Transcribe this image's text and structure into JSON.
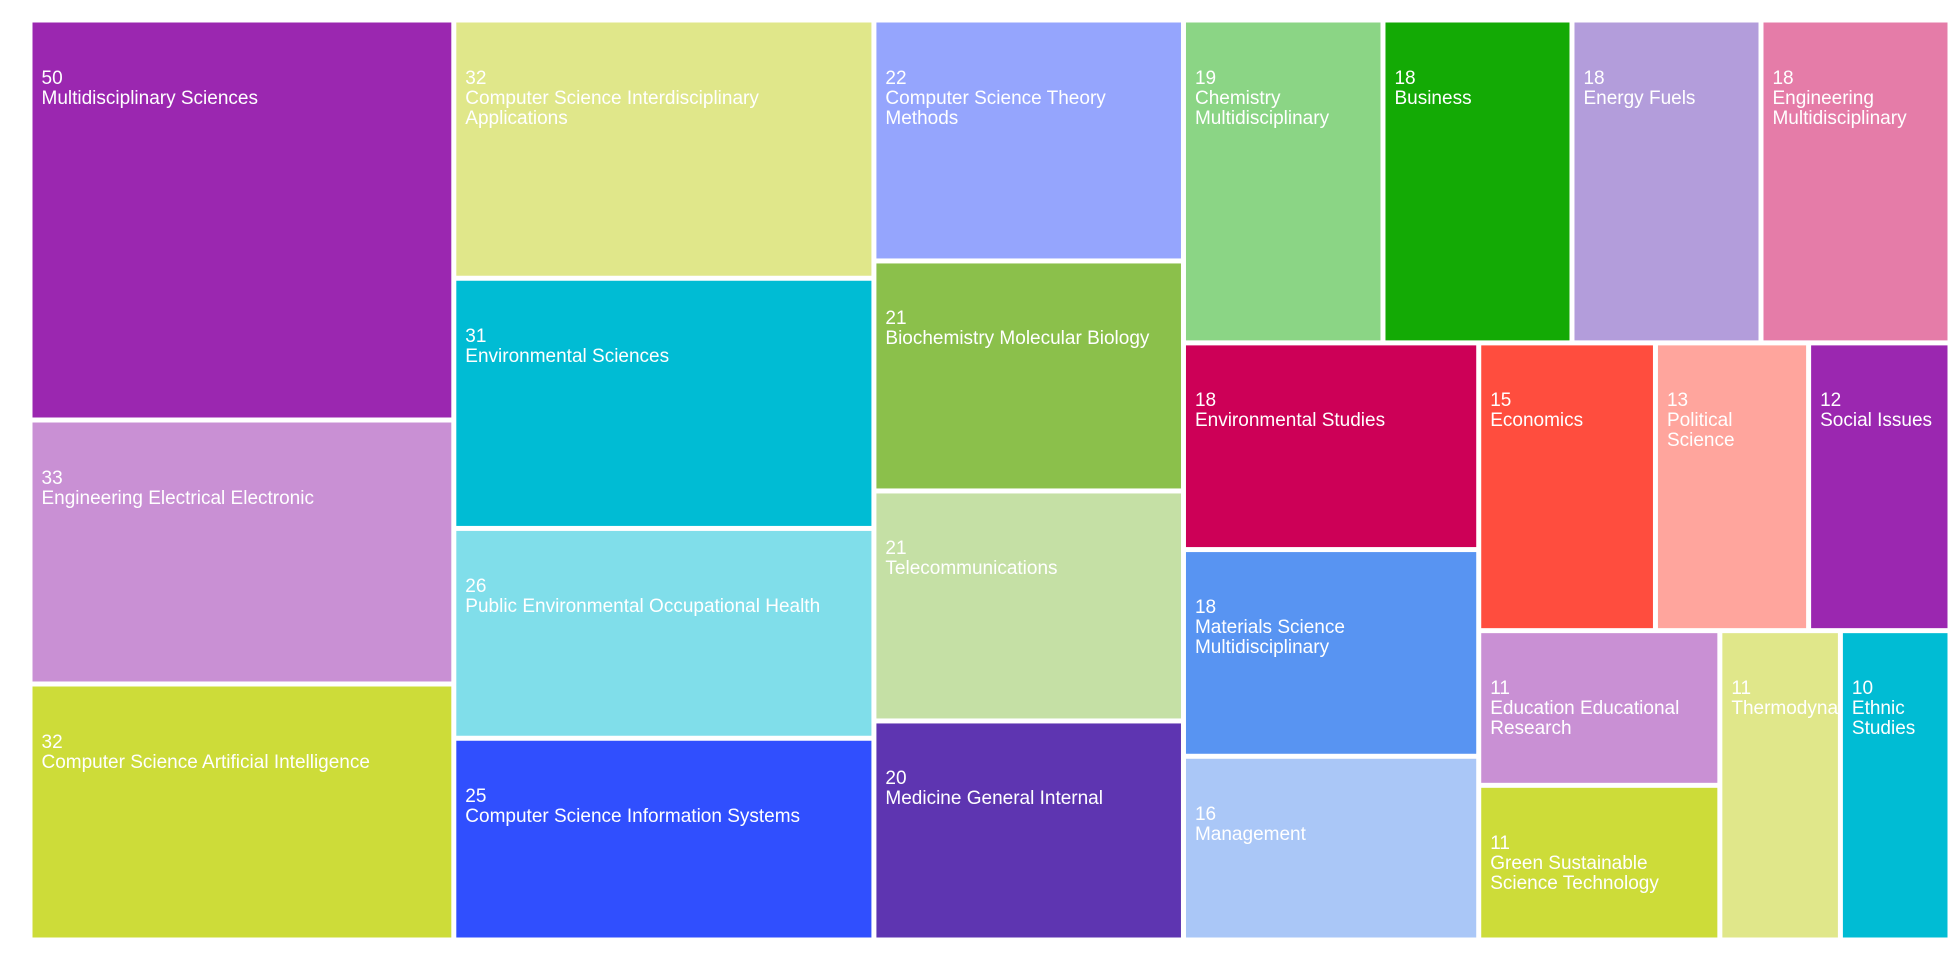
{
  "chart_data": {
    "type": "treemap",
    "categories": [
      "Multidisciplinary Sciences",
      "Engineering Electrical Electronic",
      "Computer Science Artificial Intelligence",
      "Computer Science Interdisciplinary Applications",
      "Environmental Sciences",
      "Public Environmental Occupational Health",
      "Computer Science Information Systems",
      "Computer Science Theory Methods",
      "Biochemistry Molecular Biology",
      "Telecommunications",
      "Medicine General Internal",
      "Chemistry Multidisciplinary",
      "Business",
      "Energy Fuels",
      "Engineering Multidisciplinary",
      "Environmental Studies",
      "Materials Science Multidisciplinary",
      "Management",
      "Economics",
      "Political Science",
      "Social Issues",
      "Education Educational Research",
      "Green Sustainable Science Technology",
      "Thermodynamics",
      "Ethnic Studies"
    ],
    "values": [
      50,
      33,
      32,
      32,
      31,
      26,
      25,
      22,
      21,
      21,
      20,
      19,
      18,
      18,
      18,
      18,
      18,
      16,
      15,
      13,
      12,
      11,
      11,
      11,
      10
    ],
    "colors": [
      "#9b27b0",
      "#c990d4",
      "#cddc39",
      "#e0e78a",
      "#00bcd4",
      "#80deea",
      "#304ffe",
      "#95a5fd",
      "#8bc04b",
      "#c5e0a5",
      "#5e35b1",
      "#8bd585",
      "#13aa05",
      "#b39ddb",
      "#e57ca8",
      "#cd0057",
      "#5894f2",
      "#aac7f7",
      "#ff4d3e",
      "#ffa59d",
      "#9b27b0",
      "#c990d4",
      "#cddc39",
      "#e0e78a",
      "#00bcd4"
    ]
  }
}
